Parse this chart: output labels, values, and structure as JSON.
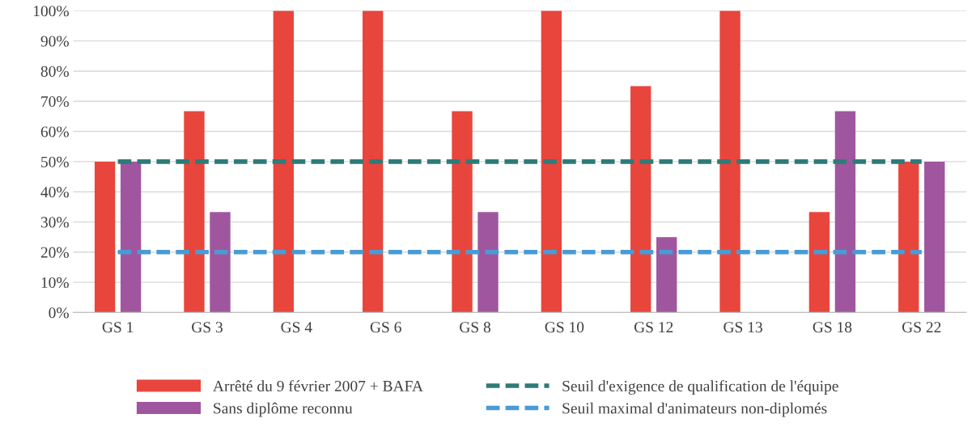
{
  "chart_data": {
    "type": "bar",
    "categories": [
      "GS 1",
      "GS 3",
      "GS 4",
      "GS 6",
      "GS 8",
      "GS 10",
      "GS 12",
      "GS 13",
      "GS 18",
      "GS 22"
    ],
    "series": [
      {
        "name": "Arrêté du 9 février 2007 + BAFA",
        "color": "#e8463c",
        "values": [
          50,
          66.7,
          100,
          100,
          66.7,
          100,
          75,
          100,
          33.3,
          50
        ]
      },
      {
        "name": "Sans diplôme reconnu",
        "color": "#a0569f",
        "values": [
          50,
          33.3,
          0,
          0,
          33.3,
          0,
          25,
          0,
          66.7,
          50
        ]
      },
      {
        "name": "Seuil d'exigence de qualification de l'équipe",
        "type": "line",
        "line_style": "dashed",
        "color": "#2e7b78",
        "values": [
          50,
          50,
          50,
          50,
          50,
          50,
          50,
          50,
          50,
          50
        ]
      },
      {
        "name": "Seuil maximal d'animateurs non-diplomés",
        "type": "line",
        "line_style": "dashed",
        "color": "#4a9bd4",
        "values": [
          20,
          20,
          20,
          20,
          20,
          20,
          20,
          20,
          20,
          20
        ]
      }
    ],
    "ylim": [
      0,
      100
    ],
    "yticks": [
      {
        "value": 0,
        "label": "0%"
      },
      {
        "value": 10,
        "label": "10%"
      },
      {
        "value": 20,
        "label": "20%"
      },
      {
        "value": 30,
        "label": "30%"
      },
      {
        "value": 40,
        "label": "40%"
      },
      {
        "value": 50,
        "label": "50%"
      },
      {
        "value": 60,
        "label": "60%"
      },
      {
        "value": 70,
        "label": "70%"
      },
      {
        "value": 80,
        "label": "80%"
      },
      {
        "value": 90,
        "label": "90%"
      },
      {
        "value": 100,
        "label": "100%"
      }
    ],
    "grid": "y",
    "legend": "bottom"
  }
}
